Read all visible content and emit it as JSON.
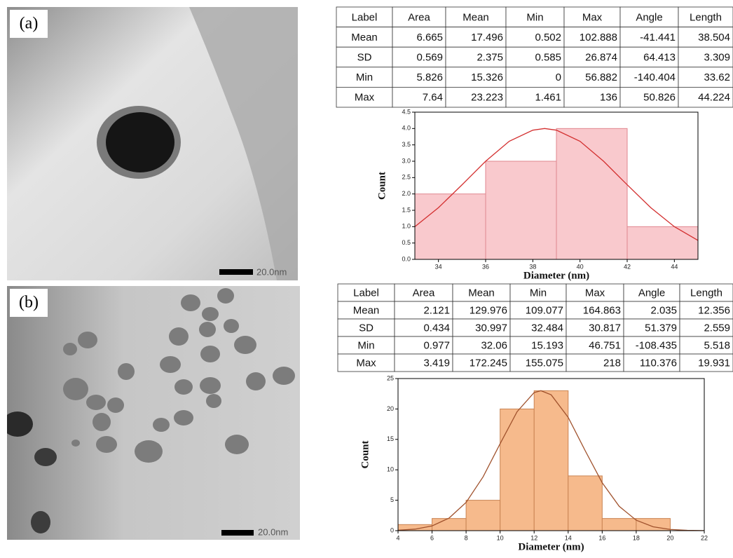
{
  "panel_labels": [
    "(a)",
    "(b)"
  ],
  "scale_bars": [
    "20.0nm",
    "20.0nm"
  ],
  "tables": [
    {
      "header": [
        "Label",
        "Area",
        "Mean",
        "Min",
        "Max",
        "Angle",
        "Length"
      ],
      "rows": [
        [
          "Mean",
          6.665,
          17.496,
          0.502,
          102.888,
          -41.441,
          38.504
        ],
        [
          "SD",
          0.569,
          2.375,
          0.585,
          26.874,
          64.413,
          3.309
        ],
        [
          "Min",
          5.826,
          15.326,
          0,
          56.882,
          -140.404,
          33.62
        ],
        [
          "Max",
          7.64,
          23.223,
          1.461,
          136,
          50.826,
          44.224
        ]
      ]
    },
    {
      "header": [
        "Label",
        "Area",
        "Mean",
        "Min",
        "Max",
        "Angle",
        "Length"
      ],
      "rows": [
        [
          "Mean",
          2.121,
          129.976,
          109.077,
          164.863,
          2.035,
          12.356
        ],
        [
          "SD",
          0.434,
          30.997,
          32.484,
          30.817,
          51.379,
          2.559
        ],
        [
          "Min",
          0.977,
          32.06,
          15.193,
          46.751,
          -108.435,
          5.518
        ],
        [
          "Max",
          3.419,
          172.245,
          155.075,
          218,
          110.376,
          19.931
        ]
      ]
    }
  ],
  "chart_data": [
    {
      "type": "histogram",
      "x_label": "Diameter (nm)",
      "y_label": "Count",
      "bins": [
        33,
        36,
        39,
        42,
        45
      ],
      "values": [
        2,
        3,
        4,
        1
      ],
      "color": "#f9c9cd",
      "edge_color": "#e0868f",
      "curve": {
        "color": "#d32f2f",
        "x": [
          33,
          34,
          35,
          36,
          37,
          38,
          38.5,
          39,
          40,
          41,
          42,
          43,
          44,
          45
        ],
        "values": [
          1.0,
          1.58,
          2.28,
          3.0,
          3.61,
          3.95,
          4.0,
          3.95,
          3.61,
          3.0,
          2.28,
          1.58,
          1.0,
          0.58
        ]
      },
      "xlim": [
        33,
        45
      ],
      "xticks": [
        34,
        36,
        38,
        40,
        42,
        44
      ],
      "ylim": [
        0,
        4.5
      ],
      "yticks": [
        {
          "value": 0,
          "label": "0.0"
        },
        {
          "value": 0.5,
          "label": "0.5"
        },
        {
          "value": 1,
          "label": "1.0"
        },
        {
          "value": 1.5,
          "label": "1.5"
        },
        {
          "value": 2,
          "label": "2.0"
        },
        {
          "value": 2.5,
          "label": "2.5"
        },
        {
          "value": 3,
          "label": "3.0"
        },
        {
          "value": 3.5,
          "label": "3.5"
        },
        {
          "value": 4,
          "label": "4.0"
        },
        {
          "value": 4.5,
          "label": "4.5"
        }
      ]
    },
    {
      "type": "histogram",
      "x_label": "Diameter (nm)",
      "y_label": "Count",
      "bins": [
        4,
        6,
        8,
        10,
        12,
        14,
        16,
        18,
        20
      ],
      "values": [
        1,
        2,
        5,
        20,
        23,
        9,
        2,
        2
      ],
      "color": "#f6ba8c",
      "edge_color": "#c98453",
      "curve": {
        "color": "#a0522d",
        "x": [
          4,
          5,
          6,
          7,
          8,
          9,
          10,
          11,
          12,
          12.4,
          13,
          14,
          15,
          16,
          17,
          18,
          19,
          20,
          21,
          22
        ],
        "values": [
          0.07,
          0.25,
          0.78,
          2.07,
          4.64,
          8.85,
          14.29,
          19.56,
          22.7,
          23,
          22.33,
          18.62,
          13.15,
          7.88,
          4.0,
          1.72,
          0.63,
          0.2,
          0.05,
          0.01
        ]
      },
      "xlim": [
        4,
        22
      ],
      "xticks": [
        4,
        6,
        8,
        10,
        12,
        14,
        16,
        18,
        20,
        22
      ],
      "ylim": [
        0,
        25
      ],
      "yticks": [
        0,
        5,
        10,
        15,
        20,
        25
      ]
    }
  ]
}
